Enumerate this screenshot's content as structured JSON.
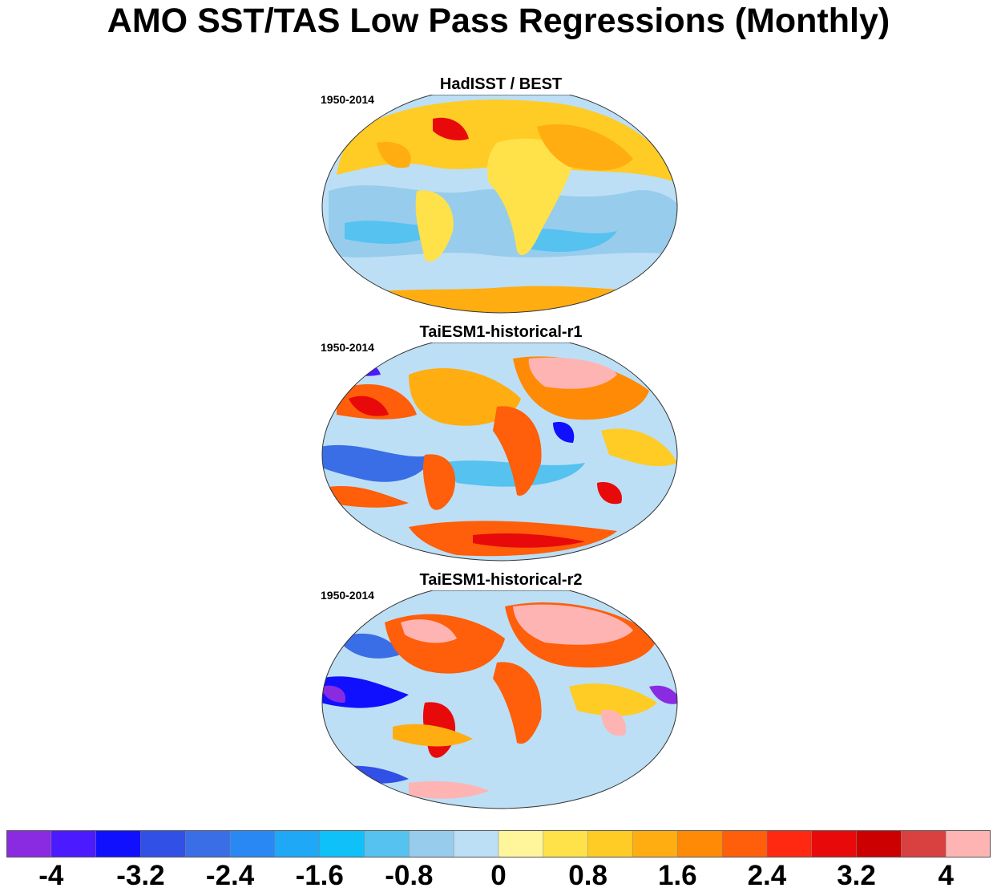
{
  "title": "AMO SST/TAS Low Pass Regressions (Monthly)",
  "panels": [
    {
      "title": "HadISST / BEST",
      "period": "1950-2014"
    },
    {
      "title": "TaiESM1-historical-r1",
      "period": "1950-2014"
    },
    {
      "title": "TaiESM1-historical-r2",
      "period": "1950-2014"
    }
  ],
  "colorbar": {
    "colors": [
      "#8a2be2",
      "#4b1aff",
      "#1010ff",
      "#3050e6",
      "#3a6ee6",
      "#2a88f5",
      "#1ea8f5",
      "#10c0f8",
      "#55c2f0",
      "#98ccec",
      "#bcdff5",
      "#fff59a",
      "#ffe14a",
      "#ffcb25",
      "#ffad10",
      "#ff8a05",
      "#ff5e0a",
      "#ff2810",
      "#e80a0a",
      "#cc0000",
      "#d94040",
      "#ffb4b4"
    ],
    "tick_labels": [
      "-4",
      "-3.2",
      "-2.4",
      "-1.6",
      "-0.8",
      "0",
      "0.8",
      "1.6",
      "2.4",
      "3.2",
      "4"
    ]
  }
}
